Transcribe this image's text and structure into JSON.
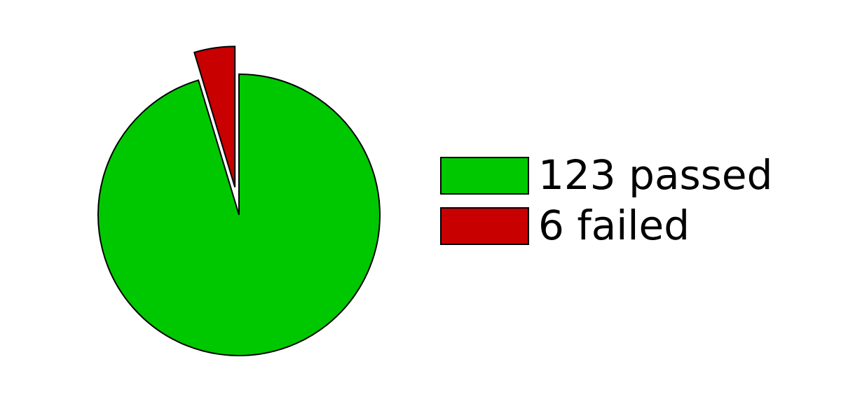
{
  "chart_data": {
    "type": "pie",
    "title": "",
    "start_angle_deg": 0,
    "direction": "clockwise",
    "exploded": [
      "failed"
    ],
    "slices": [
      {
        "key": "passed",
        "label": "123 passed",
        "value": 123,
        "color": "#00c800"
      },
      {
        "key": "failed",
        "label": "6 failed",
        "value": 6,
        "color": "#c80000"
      }
    ],
    "legend": {
      "placement": "right",
      "entries": [
        "123 passed",
        "6 failed"
      ]
    }
  }
}
